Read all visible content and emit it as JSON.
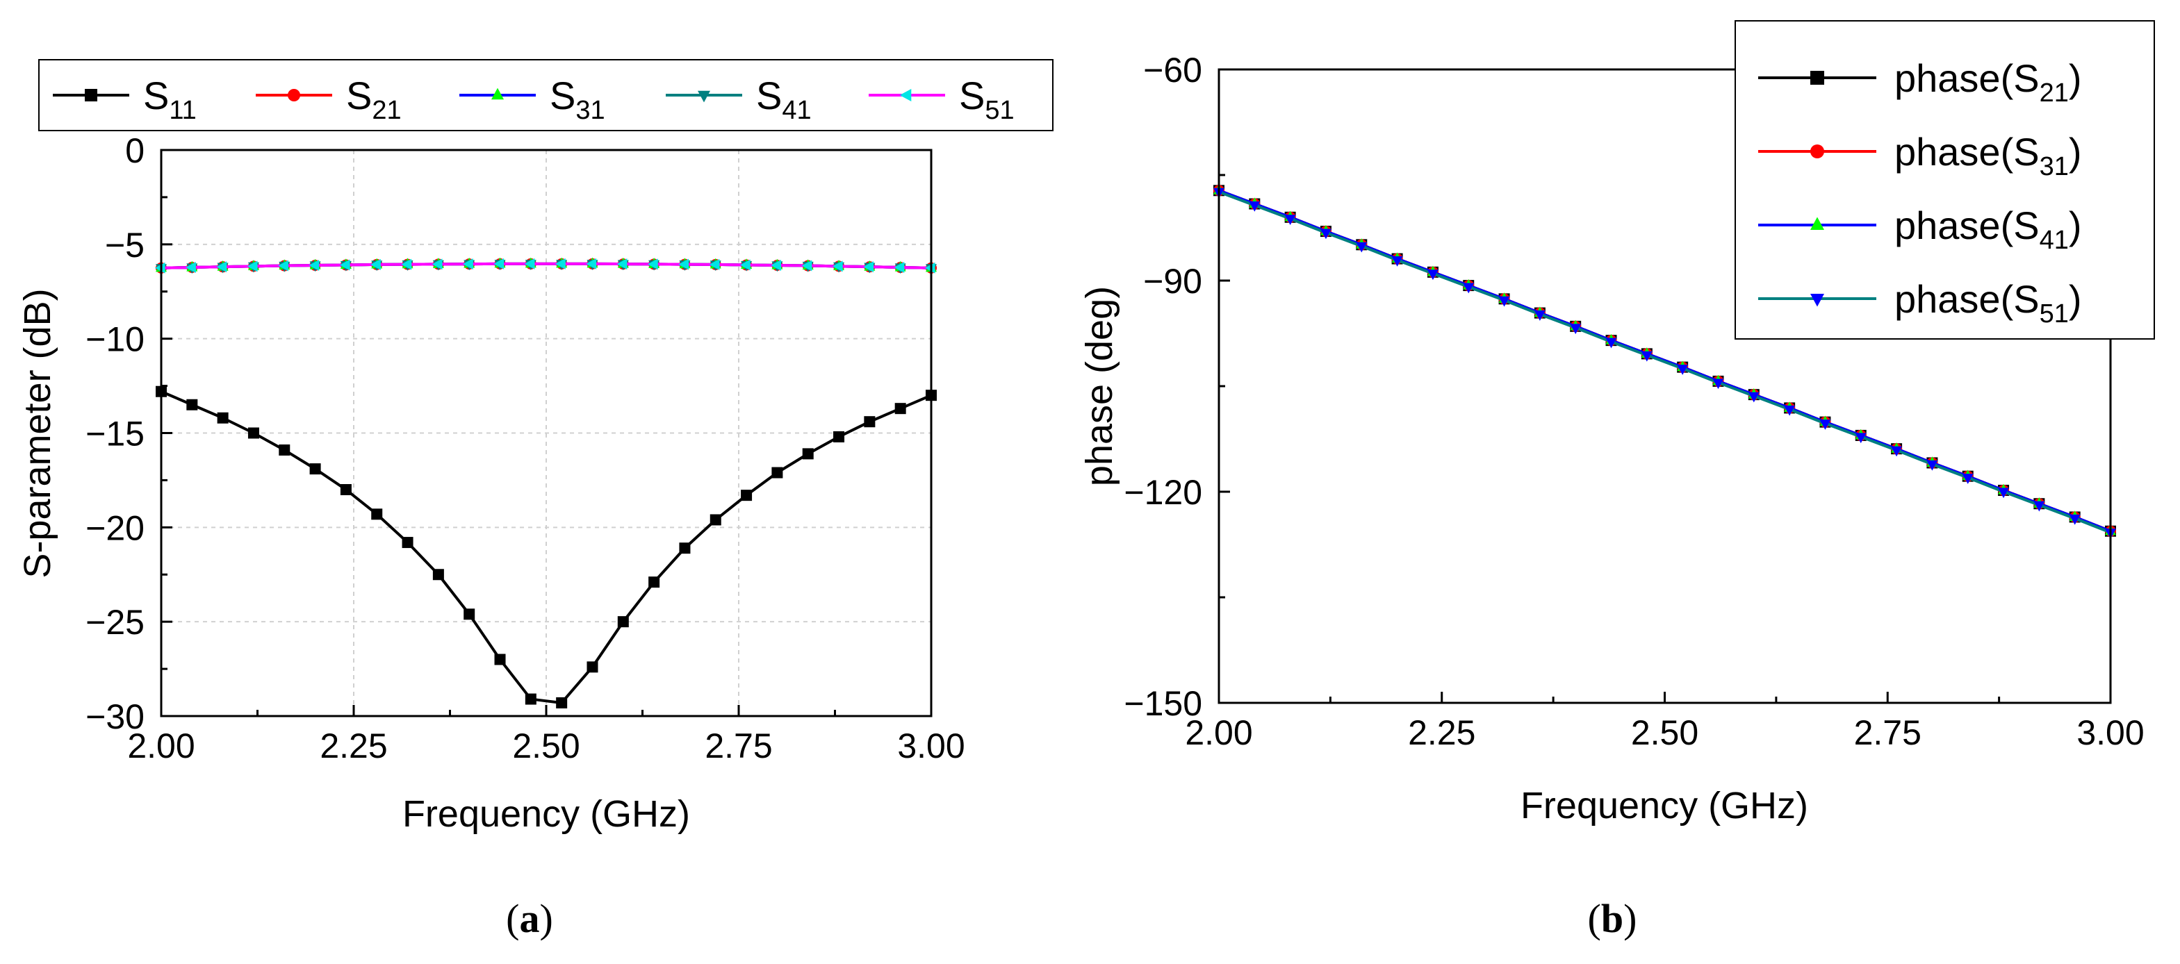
{
  "chart_data": [
    {
      "type": "line",
      "panel_label": "(a)",
      "xlabel": "Frequency (GHz)",
      "ylabel": "S-parameter (dB)",
      "xlim": [
        2.0,
        3.0
      ],
      "ylim": [
        -30,
        0
      ],
      "xticks": [
        "2.00",
        "2.25",
        "2.50",
        "2.75",
        "3.00"
      ],
      "yticks": [
        "0",
        "−5",
        "−10",
        "−15",
        "−20",
        "−25",
        "−30"
      ],
      "grid": true,
      "legend_position": "top",
      "x": [
        2.0,
        2.04,
        2.08,
        2.12,
        2.16,
        2.2,
        2.24,
        2.28,
        2.32,
        2.36,
        2.4,
        2.44,
        2.48,
        2.52,
        2.56,
        2.6,
        2.64,
        2.68,
        2.72,
        2.76,
        2.8,
        2.84,
        2.88,
        2.92,
        2.96,
        3.0
      ],
      "series": [
        {
          "name": "S",
          "sub": "11",
          "color": "#000000",
          "marker": "square",
          "values": [
            -12.8,
            -13.5,
            -14.2,
            -15.0,
            -15.9,
            -16.9,
            -18.0,
            -19.3,
            -20.8,
            -22.5,
            -24.6,
            -27.0,
            -29.1,
            -29.3,
            -27.4,
            -25.0,
            -22.9,
            -21.1,
            -19.6,
            -18.3,
            -17.1,
            -16.1,
            -15.2,
            -14.4,
            -13.7,
            -13.0
          ]
        },
        {
          "name": "S",
          "sub": "21",
          "color": "#ff0000",
          "marker": "circle",
          "values": [
            -6.25,
            -6.22,
            -6.19,
            -6.16,
            -6.13,
            -6.11,
            -6.09,
            -6.07,
            -6.06,
            -6.05,
            -6.04,
            -6.03,
            -6.03,
            -6.03,
            -6.03,
            -6.04,
            -6.05,
            -6.06,
            -6.07,
            -6.09,
            -6.11,
            -6.13,
            -6.16,
            -6.19,
            -6.22,
            -6.25
          ]
        },
        {
          "name": "S",
          "sub": "31",
          "color": "#0000ff",
          "marker": "triangle-up",
          "values": [
            -6.25,
            -6.22,
            -6.19,
            -6.16,
            -6.13,
            -6.11,
            -6.09,
            -6.07,
            -6.06,
            -6.05,
            -6.04,
            -6.03,
            -6.03,
            -6.03,
            -6.03,
            -6.04,
            -6.05,
            -6.06,
            -6.07,
            -6.09,
            -6.11,
            -6.13,
            -6.16,
            -6.19,
            -6.22,
            -6.25
          ]
        },
        {
          "name": "S",
          "sub": "41",
          "color": "#008080",
          "marker": "triangle-down",
          "values": [
            -6.25,
            -6.22,
            -6.19,
            -6.16,
            -6.13,
            -6.11,
            -6.09,
            -6.07,
            -6.06,
            -6.05,
            -6.04,
            -6.03,
            -6.03,
            -6.03,
            -6.03,
            -6.04,
            -6.05,
            -6.06,
            -6.07,
            -6.09,
            -6.11,
            -6.13,
            -6.16,
            -6.19,
            -6.22,
            -6.25
          ]
        },
        {
          "name": "S",
          "sub": "51",
          "color": "#ff00ff",
          "marker": "triangle-left",
          "values": [
            -6.25,
            -6.22,
            -6.19,
            -6.16,
            -6.13,
            -6.11,
            -6.09,
            -6.07,
            -6.06,
            -6.05,
            -6.04,
            -6.03,
            -6.03,
            -6.03,
            -6.03,
            -6.04,
            -6.05,
            -6.06,
            -6.07,
            -6.09,
            -6.11,
            -6.13,
            -6.16,
            -6.19,
            -6.22,
            -6.25
          ]
        }
      ]
    },
    {
      "type": "line",
      "panel_label": "(b)",
      "xlabel": "Frequency (GHz)",
      "ylabel": "phase (deg)",
      "xlim": [
        2.0,
        3.0
      ],
      "ylim": [
        -150,
        -60
      ],
      "xticks": [
        "2.00",
        "2.25",
        "2.50",
        "2.75",
        "3.00"
      ],
      "yticks": [
        "−60",
        "−90",
        "−120",
        "−150"
      ],
      "grid": false,
      "legend_position": "top-right",
      "x": [
        2.0,
        2.04,
        2.08,
        2.12,
        2.16,
        2.2,
        2.24,
        2.28,
        2.32,
        2.36,
        2.4,
        2.44,
        2.48,
        2.52,
        2.56,
        2.6,
        2.64,
        2.68,
        2.72,
        2.76,
        2.8,
        2.84,
        2.88,
        2.92,
        2.96,
        3.0
      ],
      "series": [
        {
          "name": "phase(S",
          "sub": "21",
          "close": ")",
          "color": "#000000",
          "marker": "square",
          "values": [
            -77.2,
            -79.1,
            -81.0,
            -83.0,
            -84.9,
            -86.9,
            -88.8,
            -90.7,
            -92.6,
            -94.6,
            -96.5,
            -98.5,
            -100.4,
            -102.3,
            -104.3,
            -106.2,
            -108.1,
            -110.1,
            -112.0,
            -113.9,
            -115.9,
            -117.8,
            -119.8,
            -121.7,
            -123.6,
            -125.6
          ]
        },
        {
          "name": "phase(S",
          "sub": "31",
          "close": ")",
          "color": "#ff0000",
          "marker": "circle",
          "values": [
            -77.2,
            -79.1,
            -81.0,
            -83.0,
            -84.9,
            -86.9,
            -88.8,
            -90.7,
            -92.6,
            -94.6,
            -96.5,
            -98.5,
            -100.4,
            -102.3,
            -104.3,
            -106.2,
            -108.1,
            -110.1,
            -112.0,
            -113.9,
            -115.9,
            -117.8,
            -119.8,
            -121.7,
            -123.6,
            -125.6
          ]
        },
        {
          "name": "phase(S",
          "sub": "41",
          "close": ")",
          "color": "#0000ff",
          "marker": "triangle-up",
          "values": [
            -77.2,
            -79.1,
            -81.0,
            -83.0,
            -84.9,
            -86.9,
            -88.8,
            -90.7,
            -92.6,
            -94.6,
            -96.5,
            -98.5,
            -100.4,
            -102.3,
            -104.3,
            -106.2,
            -108.1,
            -110.1,
            -112.0,
            -113.9,
            -115.9,
            -117.8,
            -119.8,
            -121.7,
            -123.6,
            -125.6
          ]
        },
        {
          "name": "phase(S",
          "sub": "51",
          "close": ")",
          "color": "#008080",
          "marker": "triangle-down",
          "values": [
            -77.4,
            -79.3,
            -81.2,
            -83.2,
            -85.1,
            -87.1,
            -89.0,
            -90.9,
            -92.8,
            -94.8,
            -96.7,
            -98.7,
            -100.6,
            -102.5,
            -104.5,
            -106.4,
            -108.3,
            -110.3,
            -112.2,
            -114.1,
            -116.1,
            -118.0,
            -120.0,
            -121.9,
            -123.8,
            -125.8
          ]
        }
      ]
    }
  ]
}
